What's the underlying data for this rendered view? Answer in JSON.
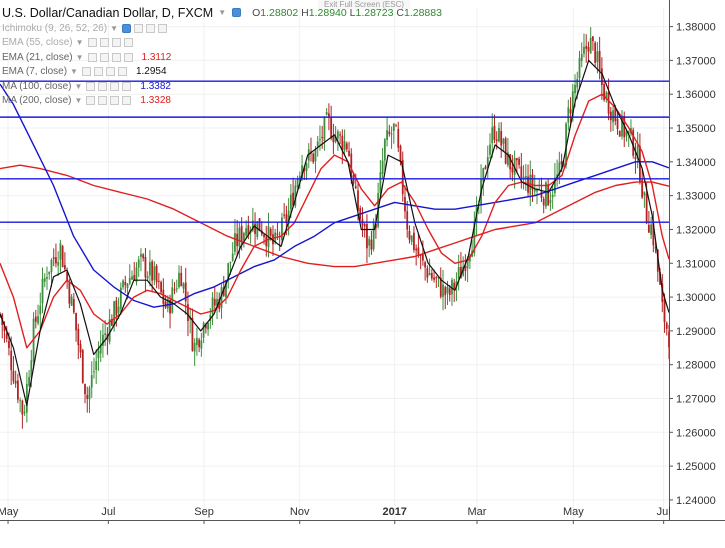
{
  "header": {
    "symbol": "U.S. Dollar/Canadian Dollar, D, FXCM",
    "open_label": "O",
    "open": "1.28802",
    "high_label": "H",
    "high": "1.28940",
    "low_label": "L",
    "low": "1.28723",
    "close_label": "C",
    "close": "1.28883",
    "exit_fullscreen": "Exit Full Screen (ESC)"
  },
  "indicators": [
    {
      "name": "Ichimoku (9, 26, 52, 26)",
      "value": "",
      "color": "#aaaaaa",
      "dim": true
    },
    {
      "name": "EMA (55, close)",
      "value": "",
      "color": "#aaaaaa",
      "dim": true
    },
    {
      "name": "EMA (21, close)",
      "value": "1.3112",
      "color": "#e02020",
      "dim": false
    },
    {
      "name": "EMA (7, close)",
      "value": "1.2954",
      "color": "#111111",
      "dim": false
    },
    {
      "name": "MA (100, close)",
      "value": "1.3382",
      "color": "#1515d0",
      "dim": false
    },
    {
      "name": "MA (200, close)",
      "value": "1.3328",
      "color": "#e02020",
      "dim": false
    }
  ],
  "colors": {
    "up_candle": "#3d8f3d",
    "down_candle": "#b22222",
    "ema7": "#111111",
    "ema21": "#e02020",
    "ma100": "#1515d0",
    "ma200": "#e02020",
    "hline": "#1a1ae0",
    "last_price_bg": "#2f8a2f",
    "grid": "#f0f0f0"
  },
  "chart_data": {
    "type": "candlestick",
    "ylim": [
      1.2385,
      1.3855
    ],
    "y_ticks": [
      "1.24000",
      "1.25000",
      "1.26000",
      "1.27000",
      "1.28000",
      "1.29000",
      "1.30000",
      "1.31000",
      "1.32000",
      "1.33000",
      "1.34000",
      "1.35000",
      "1.36000",
      "1.37000",
      "1.38000"
    ],
    "x_tick_labels": [
      {
        "label": "May",
        "t": 0.012
      },
      {
        "label": "Jul",
        "t": 0.162
      },
      {
        "label": "Sep",
        "t": 0.305
      },
      {
        "label": "Nov",
        "t": 0.448
      },
      {
        "label": "2017",
        "t": 0.59,
        "bold": true
      },
      {
        "label": "Mar",
        "t": 0.713
      },
      {
        "label": "May",
        "t": 0.857
      },
      {
        "label": "Jul",
        "t": 0.992
      }
    ],
    "horizontal_levels": [
      "1.36385",
      "1.35322",
      "1.33498",
      "1.32214"
    ],
    "last_price": "1.28883",
    "close_path": [
      [
        0.0,
        1.295
      ],
      [
        0.02,
        1.278
      ],
      [
        0.035,
        1.265
      ],
      [
        0.05,
        1.29
      ],
      [
        0.07,
        1.308
      ],
      [
        0.09,
        1.315
      ],
      [
        0.11,
        1.295
      ],
      [
        0.13,
        1.27
      ],
      [
        0.15,
        1.286
      ],
      [
        0.17,
        1.295
      ],
      [
        0.19,
        1.305
      ],
      [
        0.21,
        1.31
      ],
      [
        0.23,
        1.306
      ],
      [
        0.25,
        1.296
      ],
      [
        0.27,
        1.308
      ],
      [
        0.29,
        1.285
      ],
      [
        0.31,
        1.295
      ],
      [
        0.33,
        1.3
      ],
      [
        0.35,
        1.315
      ],
      [
        0.37,
        1.322
      ],
      [
        0.39,
        1.321
      ],
      [
        0.41,
        1.315
      ],
      [
        0.43,
        1.324
      ],
      [
        0.45,
        1.34
      ],
      [
        0.47,
        1.342
      ],
      [
        0.49,
        1.352
      ],
      [
        0.5,
        1.348
      ],
      [
        0.52,
        1.345
      ],
      [
        0.53,
        1.33
      ],
      [
        0.55,
        1.315
      ],
      [
        0.56,
        1.32
      ],
      [
        0.575,
        1.345
      ],
      [
        0.59,
        1.35
      ],
      [
        0.61,
        1.32
      ],
      [
        0.63,
        1.31
      ],
      [
        0.65,
        1.305
      ],
      [
        0.67,
        1.3
      ],
      [
        0.69,
        1.308
      ],
      [
        0.71,
        1.32
      ],
      [
        0.73,
        1.345
      ],
      [
        0.74,
        1.35
      ],
      [
        0.76,
        1.34
      ],
      [
        0.78,
        1.335
      ],
      [
        0.8,
        1.332
      ],
      [
        0.82,
        1.33
      ],
      [
        0.84,
        1.338
      ],
      [
        0.85,
        1.355
      ],
      [
        0.87,
        1.37
      ],
      [
        0.88,
        1.376
      ],
      [
        0.89,
        1.372
      ],
      [
        0.9,
        1.362
      ],
      [
        0.915,
        1.355
      ],
      [
        0.93,
        1.35
      ],
      [
        0.945,
        1.346
      ],
      [
        0.955,
        1.34
      ],
      [
        0.965,
        1.325
      ],
      [
        0.975,
        1.32
      ],
      [
        0.985,
        1.305
      ],
      [
        0.99,
        1.296
      ],
      [
        1.0,
        1.2888
      ]
    ],
    "ema7_path": [
      [
        0.0,
        1.295
      ],
      [
        0.02,
        1.285
      ],
      [
        0.04,
        1.268
      ],
      [
        0.06,
        1.29
      ],
      [
        0.08,
        1.306
      ],
      [
        0.1,
        1.308
      ],
      [
        0.12,
        1.298
      ],
      [
        0.14,
        1.283
      ],
      [
        0.16,
        1.288
      ],
      [
        0.18,
        1.295
      ],
      [
        0.2,
        1.305
      ],
      [
        0.22,
        1.305
      ],
      [
        0.24,
        1.3
      ],
      [
        0.26,
        1.298
      ],
      [
        0.28,
        1.295
      ],
      [
        0.3,
        1.29
      ],
      [
        0.32,
        1.295
      ],
      [
        0.34,
        1.305
      ],
      [
        0.36,
        1.315
      ],
      [
        0.38,
        1.321
      ],
      [
        0.4,
        1.318
      ],
      [
        0.42,
        1.315
      ],
      [
        0.44,
        1.328
      ],
      [
        0.46,
        1.342
      ],
      [
        0.48,
        1.345
      ],
      [
        0.5,
        1.348
      ],
      [
        0.52,
        1.34
      ],
      [
        0.54,
        1.32
      ],
      [
        0.56,
        1.32
      ],
      [
        0.58,
        1.342
      ],
      [
        0.6,
        1.34
      ],
      [
        0.62,
        1.322
      ],
      [
        0.64,
        1.31
      ],
      [
        0.66,
        1.305
      ],
      [
        0.68,
        1.302
      ],
      [
        0.7,
        1.312
      ],
      [
        0.72,
        1.332
      ],
      [
        0.74,
        1.345
      ],
      [
        0.76,
        1.342
      ],
      [
        0.78,
        1.334
      ],
      [
        0.8,
        1.332
      ],
      [
        0.82,
        1.331
      ],
      [
        0.84,
        1.338
      ],
      [
        0.86,
        1.358
      ],
      [
        0.88,
        1.37
      ],
      [
        0.9,
        1.366
      ],
      [
        0.92,
        1.356
      ],
      [
        0.94,
        1.348
      ],
      [
        0.96,
        1.338
      ],
      [
        0.975,
        1.324
      ],
      [
        0.99,
        1.302
      ],
      [
        1.0,
        1.2954
      ]
    ],
    "ema21_path": [
      [
        0.0,
        1.31
      ],
      [
        0.02,
        1.3
      ],
      [
        0.04,
        1.285
      ],
      [
        0.06,
        1.29
      ],
      [
        0.08,
        1.3
      ],
      [
        0.1,
        1.305
      ],
      [
        0.12,
        1.302
      ],
      [
        0.14,
        1.295
      ],
      [
        0.16,
        1.292
      ],
      [
        0.18,
        1.295
      ],
      [
        0.2,
        1.3
      ],
      [
        0.22,
        1.302
      ],
      [
        0.24,
        1.301
      ],
      [
        0.26,
        1.299
      ],
      [
        0.28,
        1.297
      ],
      [
        0.3,
        1.295
      ],
      [
        0.32,
        1.296
      ],
      [
        0.34,
        1.3
      ],
      [
        0.36,
        1.308
      ],
      [
        0.38,
        1.315
      ],
      [
        0.4,
        1.317
      ],
      [
        0.42,
        1.318
      ],
      [
        0.44,
        1.322
      ],
      [
        0.46,
        1.33
      ],
      [
        0.48,
        1.338
      ],
      [
        0.5,
        1.342
      ],
      [
        0.52,
        1.34
      ],
      [
        0.54,
        1.332
      ],
      [
        0.56,
        1.327
      ],
      [
        0.58,
        1.332
      ],
      [
        0.6,
        1.334
      ],
      [
        0.62,
        1.328
      ],
      [
        0.64,
        1.32
      ],
      [
        0.66,
        1.313
      ],
      [
        0.68,
        1.31
      ],
      [
        0.7,
        1.311
      ],
      [
        0.72,
        1.318
      ],
      [
        0.74,
        1.328
      ],
      [
        0.76,
        1.333
      ],
      [
        0.78,
        1.334
      ],
      [
        0.8,
        1.333
      ],
      [
        0.82,
        1.333
      ],
      [
        0.84,
        1.336
      ],
      [
        0.86,
        1.348
      ],
      [
        0.88,
        1.358
      ],
      [
        0.9,
        1.36
      ],
      [
        0.92,
        1.356
      ],
      [
        0.94,
        1.35
      ],
      [
        0.96,
        1.343
      ],
      [
        0.975,
        1.333
      ],
      [
        0.99,
        1.318
      ],
      [
        1.0,
        1.3112
      ]
    ],
    "ma100_path": [
      [
        0.0,
        1.363
      ],
      [
        0.02,
        1.357
      ],
      [
        0.05,
        1.345
      ],
      [
        0.08,
        1.333
      ],
      [
        0.11,
        1.318
      ],
      [
        0.14,
        1.308
      ],
      [
        0.17,
        1.303
      ],
      [
        0.2,
        1.299
      ],
      [
        0.23,
        1.297
      ],
      [
        0.26,
        1.298
      ],
      [
        0.29,
        1.301
      ],
      [
        0.32,
        1.303
      ],
      [
        0.35,
        1.306
      ],
      [
        0.38,
        1.309
      ],
      [
        0.41,
        1.311
      ],
      [
        0.44,
        1.315
      ],
      [
        0.47,
        1.318
      ],
      [
        0.5,
        1.322
      ],
      [
        0.53,
        1.324
      ],
      [
        0.56,
        1.326
      ],
      [
        0.59,
        1.328
      ],
      [
        0.62,
        1.327
      ],
      [
        0.65,
        1.326
      ],
      [
        0.68,
        1.326
      ],
      [
        0.71,
        1.327
      ],
      [
        0.74,
        1.328
      ],
      [
        0.77,
        1.329
      ],
      [
        0.8,
        1.33
      ],
      [
        0.83,
        1.332
      ],
      [
        0.86,
        1.334
      ],
      [
        0.89,
        1.336
      ],
      [
        0.92,
        1.338
      ],
      [
        0.95,
        1.34
      ],
      [
        0.975,
        1.34
      ],
      [
        1.0,
        1.3382
      ]
    ],
    "ma200_path": [
      [
        0.0,
        1.338
      ],
      [
        0.03,
        1.339
      ],
      [
        0.06,
        1.338
      ],
      [
        0.1,
        1.336
      ],
      [
        0.14,
        1.333
      ],
      [
        0.18,
        1.331
      ],
      [
        0.22,
        1.329
      ],
      [
        0.26,
        1.326
      ],
      [
        0.3,
        1.322
      ],
      [
        0.34,
        1.318
      ],
      [
        0.38,
        1.315
      ],
      [
        0.42,
        1.312
      ],
      [
        0.46,
        1.31
      ],
      [
        0.5,
        1.309
      ],
      [
        0.53,
        1.309
      ],
      [
        0.56,
        1.31
      ],
      [
        0.59,
        1.311
      ],
      [
        0.62,
        1.312
      ],
      [
        0.65,
        1.314
      ],
      [
        0.68,
        1.316
      ],
      [
        0.71,
        1.318
      ],
      [
        0.74,
        1.32
      ],
      [
        0.77,
        1.321
      ],
      [
        0.8,
        1.322
      ],
      [
        0.83,
        1.325
      ],
      [
        0.86,
        1.328
      ],
      [
        0.89,
        1.331
      ],
      [
        0.92,
        1.333
      ],
      [
        0.95,
        1.334
      ],
      [
        0.975,
        1.334
      ],
      [
        1.0,
        1.3328
      ]
    ]
  }
}
